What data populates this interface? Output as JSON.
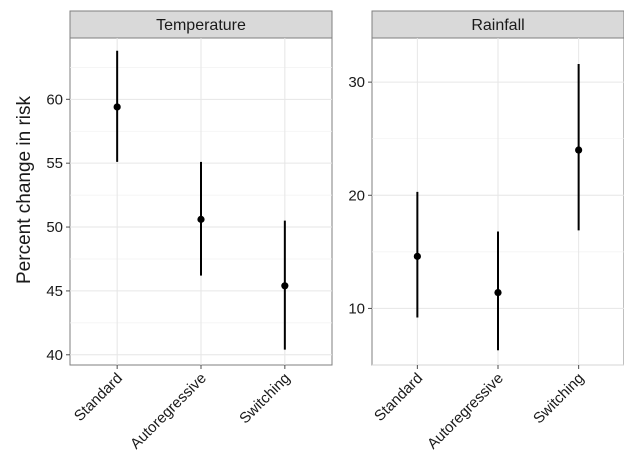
{
  "chart_data": {
    "type": "scatter",
    "ylabel": "Percent change in risk",
    "categories": [
      "Standard",
      "Autoregressive",
      "Switching"
    ],
    "panels": [
      {
        "title": "Temperature",
        "ylim": [
          39.2,
          64.8
        ],
        "yticks": [
          40,
          45,
          50,
          55,
          60
        ],
        "ytick_labels": [
          "40",
          "45",
          "50",
          "55",
          "60"
        ],
        "points": [
          {
            "category": "Standard",
            "estimate": 59.4,
            "lower": 55.1,
            "upper": 63.8
          },
          {
            "category": "Autoregressive",
            "estimate": 50.6,
            "lower": 46.2,
            "upper": 55.1
          },
          {
            "category": "Switching",
            "estimate": 45.4,
            "lower": 40.4,
            "upper": 50.5
          }
        ]
      },
      {
        "title": "Rainfall",
        "ylim": [
          5.0,
          33.9
        ],
        "yticks": [
          10,
          20,
          30
        ],
        "ytick_labels": [
          "10",
          "20",
          "30"
        ],
        "points": [
          {
            "category": "Standard",
            "estimate": 14.6,
            "lower": 9.2,
            "upper": 20.3
          },
          {
            "category": "Autoregressive",
            "estimate": 11.4,
            "lower": 6.3,
            "upper": 16.8
          },
          {
            "category": "Switching",
            "estimate": 24.0,
            "lower": 16.9,
            "upper": 31.6
          }
        ]
      }
    ]
  }
}
